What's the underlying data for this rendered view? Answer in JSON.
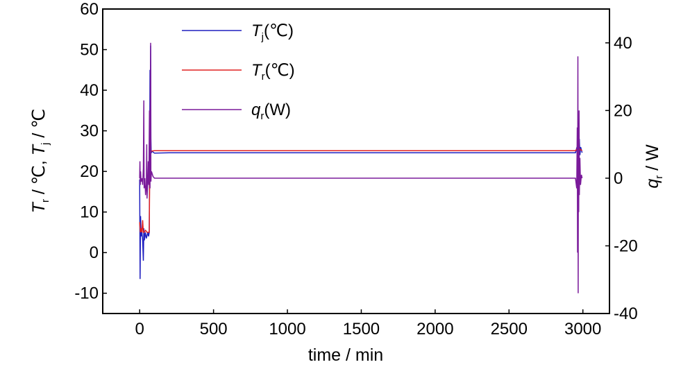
{
  "chart_data": {
    "type": "line",
    "title": "",
    "xlabel": "time / min",
    "ylabel_left": {
      "main": "T",
      "sub1": "r",
      "mid": " / ℃, ",
      "main2": "T",
      "sub2": "j",
      "tail": " / ℃"
    },
    "ylabel_right": {
      "main": "q",
      "sub": "r",
      "tail": " / W"
    },
    "xlim": [
      -250,
      3180
    ],
    "ylim_left": [
      -15,
      60
    ],
    "ylim_right": [
      -40,
      50
    ],
    "xticks": [
      0,
      500,
      1000,
      1500,
      2000,
      2500,
      3000
    ],
    "yticks_left": [
      -10,
      0,
      10,
      20,
      30,
      40,
      50,
      60
    ],
    "yticks_right": [
      -40,
      -20,
      0,
      20,
      40
    ],
    "grid": false,
    "legend_position": "top-left",
    "series": [
      {
        "name": "Tj(℃)",
        "legend": {
          "main": "T",
          "sub": "j",
          "tail": "(℃)"
        },
        "axis": "left",
        "color": "#1f1fbf",
        "points": [
          [
            0,
            18
          ],
          [
            3,
            -6.5
          ],
          [
            6,
            9
          ],
          [
            10,
            4
          ],
          [
            15,
            5
          ],
          [
            20,
            3
          ],
          [
            25,
            -2
          ],
          [
            28,
            6
          ],
          [
            32,
            3
          ],
          [
            38,
            5
          ],
          [
            45,
            3.5
          ],
          [
            55,
            5
          ],
          [
            60,
            4
          ],
          [
            65,
            5
          ],
          [
            68,
            28
          ],
          [
            70,
            45
          ],
          [
            72,
            38
          ],
          [
            74,
            51
          ],
          [
            76,
            28
          ],
          [
            78,
            24.5
          ],
          [
            82,
            25
          ],
          [
            100,
            24.5
          ],
          [
            200,
            24.6
          ],
          [
            500,
            24.6
          ],
          [
            1000,
            24.6
          ],
          [
            1500,
            24.6
          ],
          [
            2000,
            24.6
          ],
          [
            2500,
            24.6
          ],
          [
            2950,
            24.6
          ],
          [
            2960,
            26
          ],
          [
            2965,
            18
          ],
          [
            2968,
            32
          ],
          [
            2972,
            17
          ],
          [
            2976,
            28
          ],
          [
            2980,
            24
          ],
          [
            2985,
            26
          ],
          [
            2995,
            24.6
          ]
        ]
      },
      {
        "name": "Tr(℃)",
        "legend": {
          "main": "T",
          "sub": "r",
          "tail": "(℃)"
        },
        "axis": "left",
        "color": "#e02020",
        "points": [
          [
            0,
            7.5
          ],
          [
            5,
            5
          ],
          [
            10,
            6
          ],
          [
            15,
            5
          ],
          [
            20,
            8
          ],
          [
            25,
            5
          ],
          [
            30,
            5
          ],
          [
            40,
            5.5
          ],
          [
            50,
            5
          ],
          [
            60,
            5
          ],
          [
            65,
            5
          ],
          [
            68,
            20
          ],
          [
            70,
            24
          ],
          [
            75,
            25
          ],
          [
            80,
            25
          ],
          [
            100,
            25.1
          ],
          [
            500,
            25.1
          ],
          [
            1000,
            25.1
          ],
          [
            1500,
            25.1
          ],
          [
            2000,
            25.1
          ],
          [
            2500,
            25.1
          ],
          [
            2950,
            25.1
          ],
          [
            2960,
            25.5
          ],
          [
            2970,
            24.5
          ],
          [
            2980,
            25.5
          ],
          [
            2995,
            25.1
          ]
        ]
      },
      {
        "name": "qr(W)",
        "legend": {
          "main": "q",
          "sub": "r",
          "tail": "(W)"
        },
        "axis": "right",
        "color": "#7a1a9a",
        "points": [
          [
            0,
            0
          ],
          [
            2,
            5
          ],
          [
            4,
            -2
          ],
          [
            6,
            2
          ],
          [
            10,
            -1
          ],
          [
            15,
            0
          ],
          [
            20,
            -2
          ],
          [
            25,
            3
          ],
          [
            28,
            23
          ],
          [
            30,
            -3
          ],
          [
            35,
            0
          ],
          [
            40,
            -5
          ],
          [
            45,
            -2
          ],
          [
            48,
            10
          ],
          [
            50,
            -6
          ],
          [
            55,
            -1
          ],
          [
            58,
            5
          ],
          [
            62,
            -2
          ],
          [
            66,
            20
          ],
          [
            70,
            -3
          ],
          [
            74,
            40
          ],
          [
            76,
            -1
          ],
          [
            80,
            2
          ],
          [
            90,
            0.5
          ],
          [
            100,
            0
          ],
          [
            200,
            0
          ],
          [
            500,
            0
          ],
          [
            1000,
            0
          ],
          [
            1500,
            0
          ],
          [
            2000,
            0
          ],
          [
            2500,
            0
          ],
          [
            2950,
            0
          ],
          [
            2958,
            -3
          ],
          [
            2962,
            15
          ],
          [
            2964,
            -22
          ],
          [
            2966,
            36
          ],
          [
            2968,
            -34
          ],
          [
            2970,
            12
          ],
          [
            2972,
            -10
          ],
          [
            2974,
            20
          ],
          [
            2976,
            -5
          ],
          [
            2980,
            6
          ],
          [
            2984,
            -2
          ],
          [
            2990,
            1
          ],
          [
            2995,
            0
          ]
        ]
      }
    ]
  }
}
